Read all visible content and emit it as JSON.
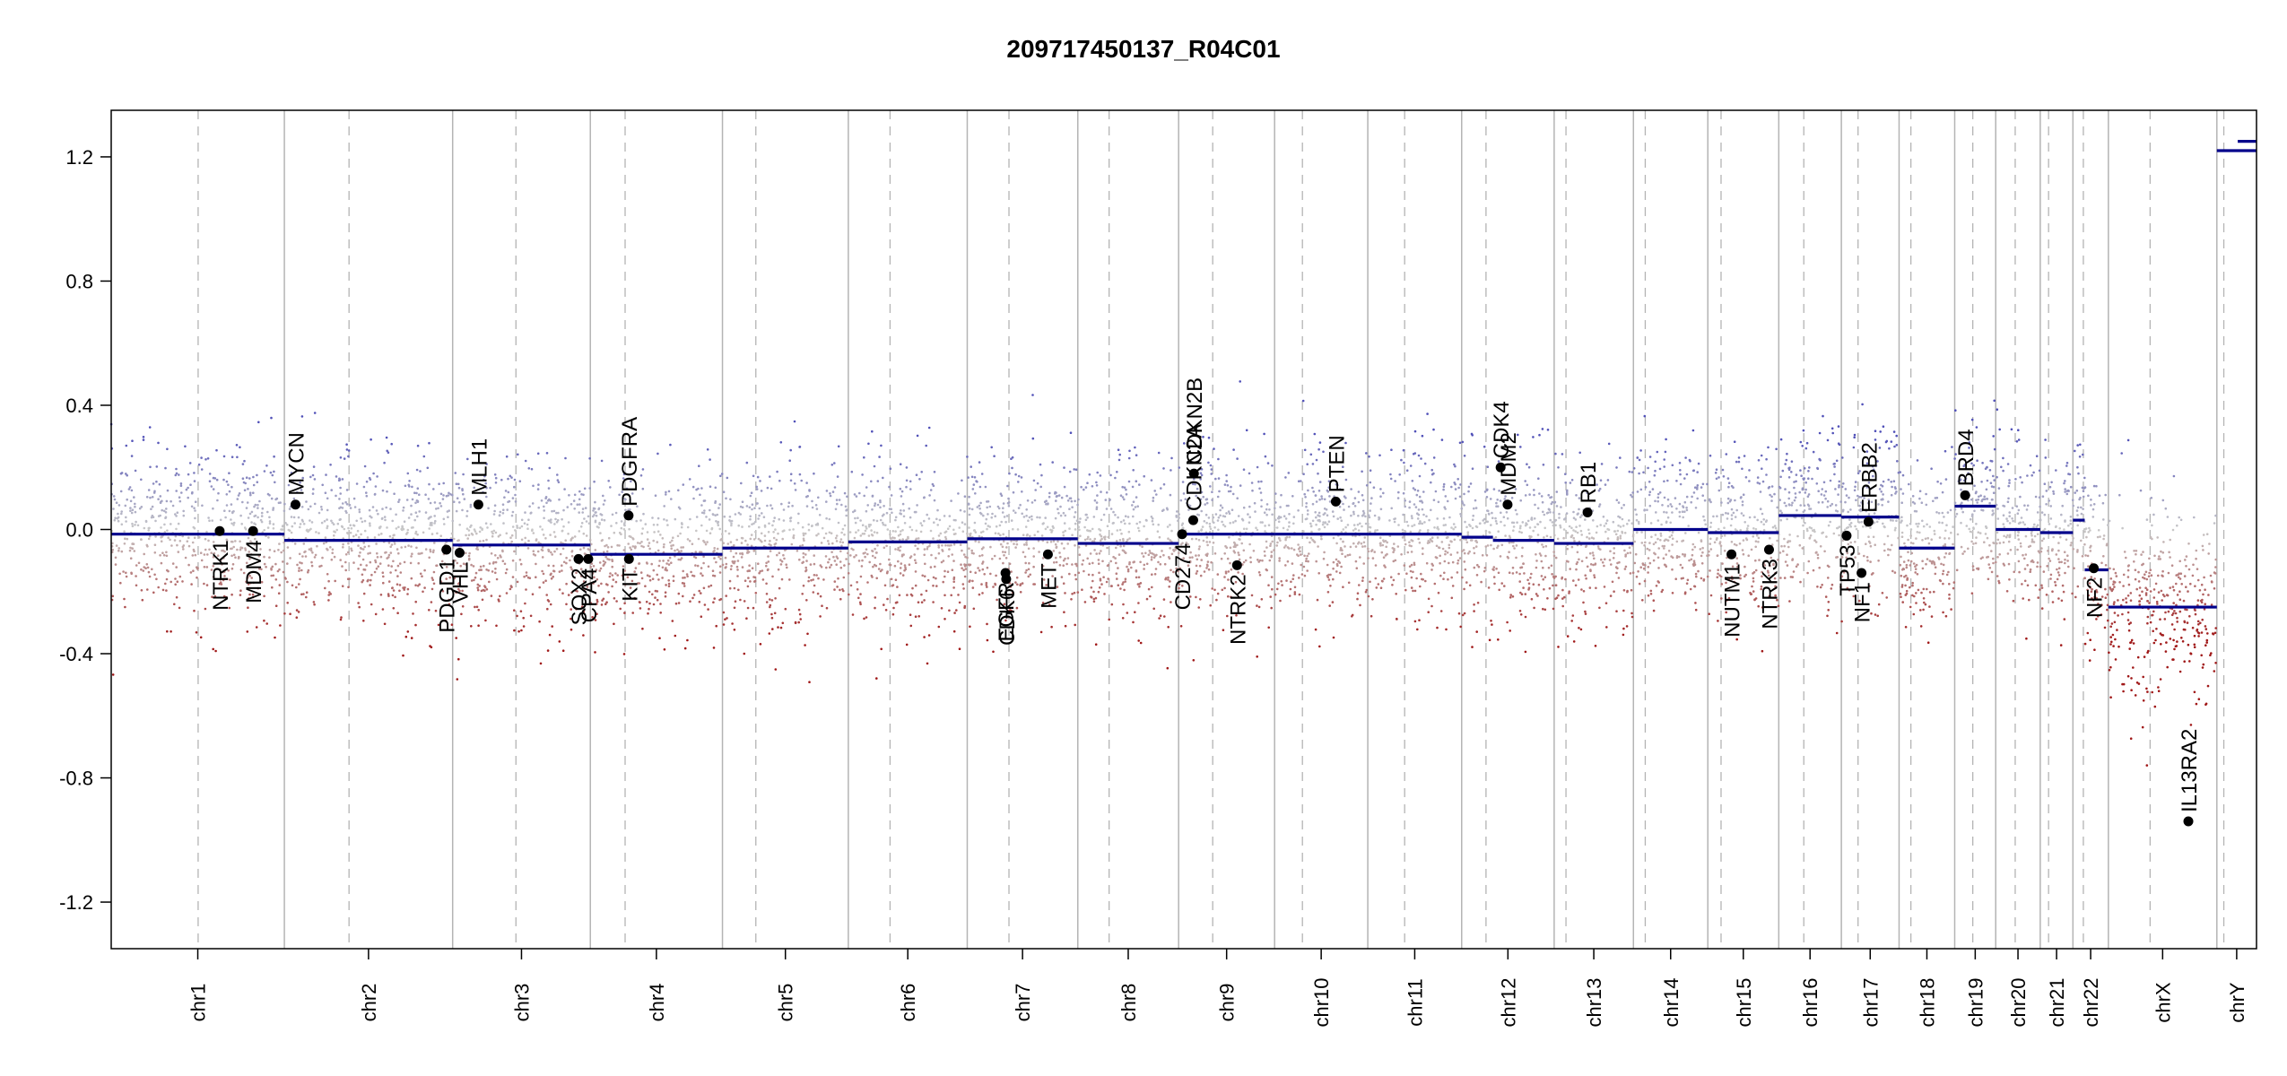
{
  "chart_data": {
    "type": "scatter",
    "title": "209717450137_R04C01",
    "ylim": [
      -1.35,
      1.35
    ],
    "yticks": [
      -1.2,
      -0.8,
      -0.4,
      0.0,
      0.4,
      0.8,
      1.2
    ],
    "ytick_labels": [
      "-1.2",
      "-0.8",
      "-0.4",
      "0.0",
      "0.4",
      "0.8",
      "1.2"
    ],
    "chromosomes": [
      {
        "name": "chr1",
        "length_mb": 249,
        "centromere_mb": 125
      },
      {
        "name": "chr2",
        "length_mb": 242,
        "centromere_mb": 93
      },
      {
        "name": "chr3",
        "length_mb": 198,
        "centromere_mb": 91
      },
      {
        "name": "chr4",
        "length_mb": 190,
        "centromere_mb": 50
      },
      {
        "name": "chr5",
        "length_mb": 181,
        "centromere_mb": 48
      },
      {
        "name": "chr6",
        "length_mb": 171,
        "centromere_mb": 60
      },
      {
        "name": "chr7",
        "length_mb": 159,
        "centromere_mb": 60
      },
      {
        "name": "chr8",
        "length_mb": 145,
        "centromere_mb": 45
      },
      {
        "name": "chr9",
        "length_mb": 138,
        "centromere_mb": 49
      },
      {
        "name": "chr10",
        "length_mb": 134,
        "centromere_mb": 40
      },
      {
        "name": "chr11",
        "length_mb": 135,
        "centromere_mb": 53
      },
      {
        "name": "chr12",
        "length_mb": 133,
        "centromere_mb": 35
      },
      {
        "name": "chr13",
        "length_mb": 114,
        "centromere_mb": 17
      },
      {
        "name": "chr14",
        "length_mb": 107,
        "centromere_mb": 17
      },
      {
        "name": "chr15",
        "length_mb": 102,
        "centromere_mb": 19
      },
      {
        "name": "chr16",
        "length_mb": 90,
        "centromere_mb": 36
      },
      {
        "name": "chr17",
        "length_mb": 83,
        "centromere_mb": 24
      },
      {
        "name": "chr18",
        "length_mb": 80,
        "centromere_mb": 17
      },
      {
        "name": "chr19",
        "length_mb": 59,
        "centromere_mb": 26
      },
      {
        "name": "chr20",
        "length_mb": 64,
        "centromere_mb": 28
      },
      {
        "name": "chr21",
        "length_mb": 47,
        "centromere_mb": 12
      },
      {
        "name": "chr22",
        "length_mb": 51,
        "centromere_mb": 15
      },
      {
        "name": "chrX",
        "length_mb": 156,
        "centromere_mb": 60
      },
      {
        "name": "chrY",
        "length_mb": 57,
        "centromere_mb": 10
      }
    ],
    "segments": [
      {
        "chr": "chr1",
        "start_mb": 0,
        "end_mb": 249,
        "value": -0.015
      },
      {
        "chr": "chr2",
        "start_mb": 0,
        "end_mb": 242,
        "value": -0.035
      },
      {
        "chr": "chr3",
        "start_mb": 0,
        "end_mb": 198,
        "value": -0.05
      },
      {
        "chr": "chr4",
        "start_mb": 0,
        "end_mb": 190,
        "value": -0.08
      },
      {
        "chr": "chr5",
        "start_mb": 0,
        "end_mb": 181,
        "value": -0.06
      },
      {
        "chr": "chr6",
        "start_mb": 0,
        "end_mb": 171,
        "value": -0.04
      },
      {
        "chr": "chr7",
        "start_mb": 0,
        "end_mb": 159,
        "value": -0.03
      },
      {
        "chr": "chr8",
        "start_mb": 0,
        "end_mb": 145,
        "value": -0.045
      },
      {
        "chr": "chr9",
        "start_mb": 0,
        "end_mb": 138,
        "value": -0.015
      },
      {
        "chr": "chr10",
        "start_mb": 0,
        "end_mb": 134,
        "value": -0.015
      },
      {
        "chr": "chr11",
        "start_mb": 0,
        "end_mb": 135,
        "value": -0.015
      },
      {
        "chr": "chr12",
        "start_mb": 0,
        "end_mb": 45,
        "value": -0.025
      },
      {
        "chr": "chr12",
        "start_mb": 45,
        "end_mb": 133,
        "value": -0.035
      },
      {
        "chr": "chr13",
        "start_mb": 0,
        "end_mb": 114,
        "value": -0.045
      },
      {
        "chr": "chr14",
        "start_mb": 0,
        "end_mb": 107,
        "value": 0.0
      },
      {
        "chr": "chr15",
        "start_mb": 0,
        "end_mb": 102,
        "value": -0.01
      },
      {
        "chr": "chr16",
        "start_mb": 0,
        "end_mb": 90,
        "value": 0.045
      },
      {
        "chr": "chr17",
        "start_mb": 0,
        "end_mb": 83,
        "value": 0.04
      },
      {
        "chr": "chr18",
        "start_mb": 0,
        "end_mb": 80,
        "value": -0.06
      },
      {
        "chr": "chr19",
        "start_mb": 0,
        "end_mb": 59,
        "value": 0.075
      },
      {
        "chr": "chr20",
        "start_mb": 0,
        "end_mb": 64,
        "value": 0.0
      },
      {
        "chr": "chr21",
        "start_mb": 0,
        "end_mb": 47,
        "value": -0.01
      },
      {
        "chr": "chr22",
        "start_mb": 0,
        "end_mb": 17,
        "value": 0.03
      },
      {
        "chr": "chr22",
        "start_mb": 17,
        "end_mb": 51,
        "value": -0.13
      },
      {
        "chr": "chrX",
        "start_mb": 0,
        "end_mb": 156,
        "value": -0.25
      },
      {
        "chr": "chrY",
        "start_mb": 0,
        "end_mb": 57,
        "value": 1.22
      },
      {
        "chr": "chrY",
        "start_mb": 30,
        "end_mb": 57,
        "value": 1.25
      }
    ],
    "genes": [
      {
        "name": "NTRK1",
        "chr": "chr1",
        "pos_mb": 156,
        "value": -0.005,
        "side": "below"
      },
      {
        "name": "MDM4",
        "chr": "chr1",
        "pos_mb": 204,
        "value": -0.005,
        "side": "below"
      },
      {
        "name": "MYCN",
        "chr": "chr2",
        "pos_mb": 16,
        "value": 0.08,
        "side": "above"
      },
      {
        "name": "PDGD1",
        "chr": "chr2",
        "pos_mb": 233,
        "value": -0.065,
        "side": "below"
      },
      {
        "name": "VHL",
        "chr": "chr3",
        "pos_mb": 10,
        "value": -0.075,
        "side": "below"
      },
      {
        "name": "MLH1",
        "chr": "chr3",
        "pos_mb": 37,
        "value": 0.08,
        "side": "above"
      },
      {
        "name": "SOX2",
        "chr": "chr3",
        "pos_mb": 181,
        "value": -0.095,
        "side": "below"
      },
      {
        "name": "CPA4",
        "chr": "chr3",
        "pos_mb": 195,
        "value": -0.095,
        "side": "below"
      },
      {
        "name": "PDGFRA",
        "chr": "chr4",
        "pos_mb": 55,
        "value": 0.045,
        "side": "above"
      },
      {
        "name": "KIT",
        "chr": "chr4",
        "pos_mb": 55.5,
        "value": -0.095,
        "side": "below"
      },
      {
        "name": "EGFR",
        "chr": "chr7",
        "pos_mb": 55,
        "value": -0.14,
        "side": "below"
      },
      {
        "name": "CDK6",
        "chr": "chr7",
        "pos_mb": 56,
        "value": -0.16,
        "side": "below"
      },
      {
        "name": "MET",
        "chr": "chr7",
        "pos_mb": 116,
        "value": -0.08,
        "side": "below"
      },
      {
        "name": "CD274",
        "chr": "chr9",
        "pos_mb": 5,
        "value": -0.015,
        "side": "below"
      },
      {
        "name": "CDKN2A",
        "chr": "chr9",
        "pos_mb": 21,
        "value": 0.03,
        "side": "above"
      },
      {
        "name": "CDKN2B",
        "chr": "chr9",
        "pos_mb": 22,
        "value": 0.18,
        "side": "above"
      },
      {
        "name": "NTRK2",
        "chr": "chr9",
        "pos_mb": 84,
        "value": -0.115,
        "side": "below"
      },
      {
        "name": "PTEN",
        "chr": "chr10",
        "pos_mb": 88,
        "value": 0.09,
        "side": "above"
      },
      {
        "name": "CDK4",
        "chr": "chr12",
        "pos_mb": 56,
        "value": 0.2,
        "side": "above"
      },
      {
        "name": "MDM2",
        "chr": "chr12",
        "pos_mb": 66,
        "value": 0.08,
        "side": "above"
      },
      {
        "name": "RB1",
        "chr": "chr13",
        "pos_mb": 48,
        "value": 0.055,
        "side": "above"
      },
      {
        "name": "NUTM1",
        "chr": "chr15",
        "pos_mb": 34,
        "value": -0.08,
        "side": "below"
      },
      {
        "name": "NTRK3",
        "chr": "chr15",
        "pos_mb": 88,
        "value": -0.065,
        "side": "below"
      },
      {
        "name": "TP53",
        "chr": "chr17",
        "pos_mb": 7.5,
        "value": -0.02,
        "side": "below"
      },
      {
        "name": "NF1",
        "chr": "chr17",
        "pos_mb": 29,
        "value": -0.14,
        "side": "below"
      },
      {
        "name": "ERBB2",
        "chr": "chr17",
        "pos_mb": 39,
        "value": 0.025,
        "side": "above"
      },
      {
        "name": "BRD4",
        "chr": "chr19",
        "pos_mb": 15,
        "value": 0.11,
        "side": "above"
      },
      {
        "name": "NF2",
        "chr": "chr22",
        "pos_mb": 30,
        "value": -0.125,
        "side": "below"
      },
      {
        "name": "IL13RA2",
        "chr": "chrX",
        "pos_mb": 115,
        "value": -0.94,
        "side": "above"
      }
    ],
    "colors": {
      "segment": "#00008b",
      "gain": "#5050b8",
      "loss": "#a01818",
      "neutral": "#c8c8c8",
      "separator": "#b4b4b4",
      "centromere": "#b4b4b4",
      "axis": "#000000"
    },
    "grid": false,
    "legend": "none"
  }
}
